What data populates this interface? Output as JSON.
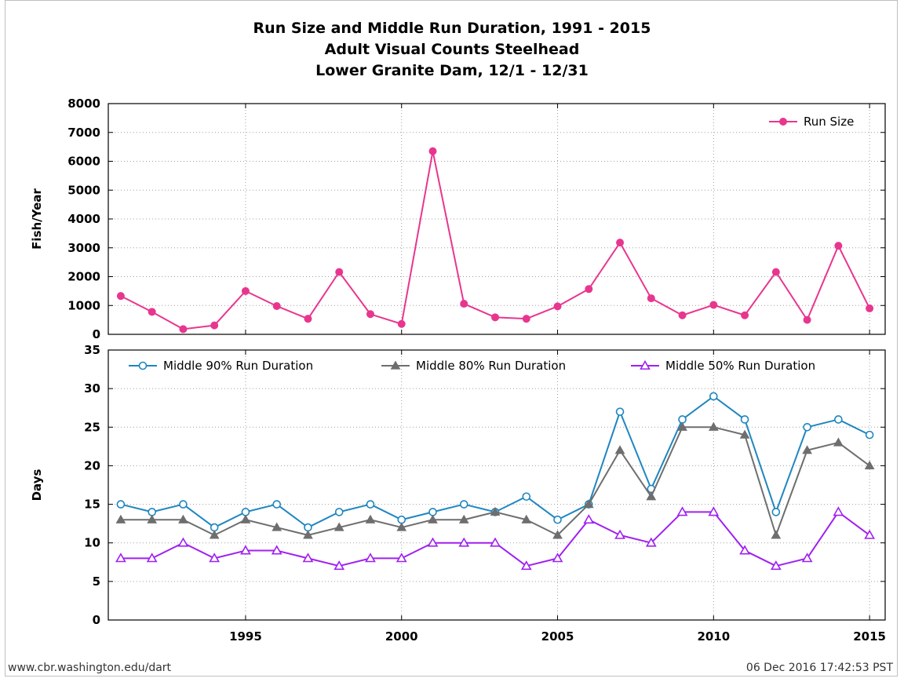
{
  "chart_data": [
    {
      "type": "line",
      "title": [
        "Run Size and Middle Run Duration, 1991 - 2015",
        "Adult Visual Counts Steelhead",
        "Lower Granite Dam, 12/1 - 12/31"
      ],
      "ylabel": "Fish/Year",
      "x": [
        1991,
        1992,
        1993,
        1994,
        1995,
        1996,
        1997,
        1998,
        1999,
        2000,
        2001,
        2002,
        2003,
        2004,
        2005,
        2006,
        2007,
        2008,
        2009,
        2010,
        2011,
        2012,
        2013,
        2014,
        2015
      ],
      "xlim": [
        1990.6,
        2015.5
      ],
      "ylim": [
        0,
        8000
      ],
      "yticks": [
        "0",
        "1000",
        "2000",
        "3000",
        "4000",
        "5000",
        "6000",
        "7000",
        "8000"
      ],
      "grid": true,
      "legend_position": "top-right",
      "series": [
        {
          "name": "Run Size",
          "color": "#e8368f",
          "marker": "filled-circle",
          "values": [
            1330,
            780,
            180,
            310,
            1500,
            980,
            540,
            2160,
            700,
            360,
            6350,
            1060,
            590,
            540,
            970,
            1570,
            3180,
            1250,
            660,
            1020,
            660,
            2160,
            500,
            3070,
            900
          ]
        }
      ]
    },
    {
      "type": "line",
      "ylabel": "Days",
      "x": [
        1991,
        1992,
        1993,
        1994,
        1995,
        1996,
        1997,
        1998,
        1999,
        2000,
        2001,
        2002,
        2003,
        2004,
        2005,
        2006,
        2007,
        2008,
        2009,
        2010,
        2011,
        2012,
        2013,
        2014,
        2015
      ],
      "xlim": [
        1990.6,
        2015.5
      ],
      "ylim": [
        0,
        35
      ],
      "xticks": [
        "1995",
        "2000",
        "2005",
        "2010",
        "2015"
      ],
      "yticks": [
        "0",
        "5",
        "10",
        "15",
        "20",
        "25",
        "30",
        "35"
      ],
      "grid": true,
      "legend_position": "top",
      "series": [
        {
          "name": "Middle 90% Run Duration",
          "color": "#1f86c0",
          "marker": "open-circle",
          "values": [
            15,
            14,
            15,
            12,
            14,
            15,
            12,
            14,
            15,
            13,
            14,
            15,
            14,
            16,
            13,
            15,
            27,
            17,
            26,
            29,
            26,
            14,
            25,
            26,
            24
          ]
        },
        {
          "name": "Middle 80% Run Duration",
          "color": "#6e6e6e",
          "marker": "filled-triangle",
          "values": [
            13,
            13,
            13,
            11,
            13,
            12,
            11,
            12,
            13,
            12,
            13,
            13,
            14,
            13,
            11,
            15,
            22,
            16,
            25,
            25,
            24,
            11,
            22,
            23,
            20
          ]
        },
        {
          "name": "Middle 50% Run Duration",
          "color": "#a020f0",
          "marker": "open-triangle",
          "values": [
            8,
            8,
            10,
            8,
            9,
            9,
            8,
            7,
            8,
            8,
            10,
            10,
            10,
            7,
            8,
            13,
            11,
            10,
            14,
            14,
            9,
            7,
            8,
            14,
            11
          ]
        }
      ]
    }
  ],
  "footer": {
    "source": "www.cbr.washington.edu/dart",
    "timestamp": "06 Dec 2016 17:42:53 PST"
  }
}
